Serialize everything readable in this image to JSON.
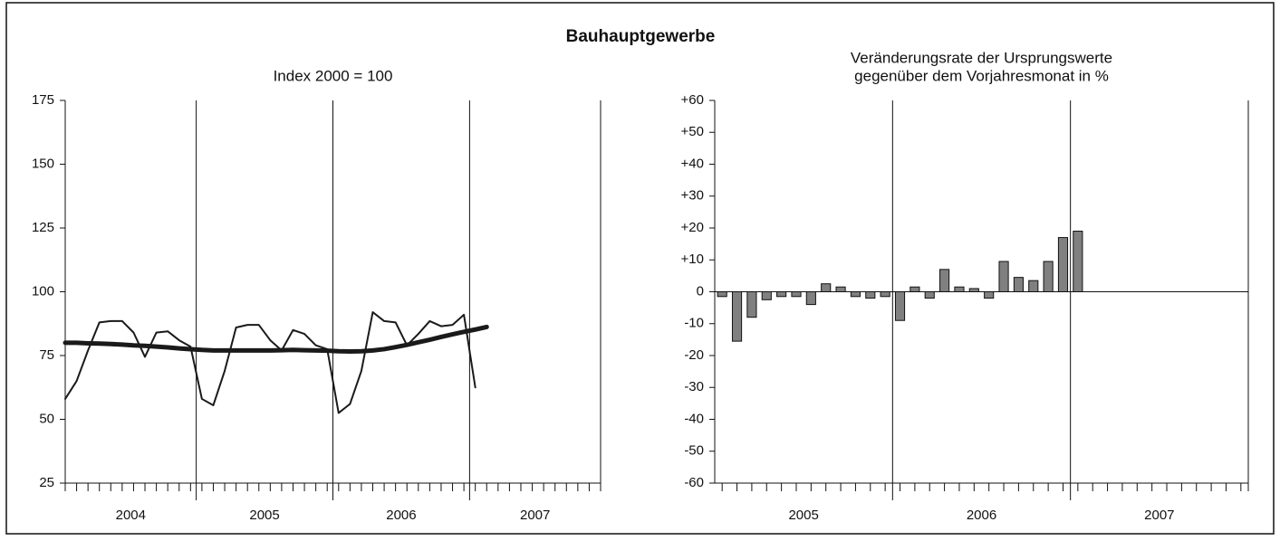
{
  "title": "Bauhauptgewerbe",
  "chart_data": [
    {
      "type": "line",
      "subtitle": [
        "Index 2000 = 100"
      ],
      "categories": [
        null,
        null,
        null,
        null,
        null,
        null,
        null,
        null,
        null,
        null,
        null,
        null,
        null,
        null,
        null,
        null,
        null,
        null,
        null,
        null,
        null,
        null,
        null,
        null,
        null,
        null,
        null,
        null,
        null,
        null,
        null,
        null,
        null,
        null,
        null,
        null,
        null,
        null,
        null,
        null,
        null,
        null,
        null,
        null,
        null,
        null,
        null,
        null
      ],
      "x_groups": [
        "2004",
        "2005",
        "2006",
        "2007"
      ],
      "series": [
        {
          "color": "#1a1a1a",
          "width": 2,
          "values": [
            58,
            65,
            77,
            88,
            88.5,
            88.5,
            84,
            74.5,
            84,
            84.5,
            81,
            78.5,
            58,
            55.5,
            69,
            86,
            87,
            87,
            81,
            77,
            85,
            83.5,
            79,
            77.5,
            52.5,
            56,
            69,
            92,
            88.5,
            88,
            79,
            83.5,
            88.5,
            86.5,
            87,
            91,
            62.5,
            null,
            null,
            null,
            null,
            null,
            null,
            null,
            null,
            null,
            null,
            null
          ]
        },
        {
          "color": "#1a1a1a",
          "width": 5,
          "values": [
            80,
            80,
            79.8,
            79.7,
            79.5,
            79.3,
            79,
            78.8,
            78.5,
            78.2,
            77.8,
            77.5,
            77.2,
            77,
            77,
            77,
            77,
            77,
            77,
            77.1,
            77.2,
            77.1,
            77,
            76.9,
            76.7,
            76.6,
            76.7,
            77,
            77.5,
            78.3,
            79.2,
            80.2,
            81.2,
            82.3,
            83.3,
            84.3,
            85.2,
            86.2,
            null,
            null,
            null,
            null,
            null,
            null,
            null,
            null,
            null,
            null
          ]
        }
      ],
      "ylim": [
        25,
        175
      ],
      "yticks": [
        25,
        50,
        75,
        100,
        125,
        150,
        175
      ]
    },
    {
      "type": "bar",
      "subtitle": [
        "Veränderungsrate der Ursprungswerte",
        "gegenüber dem Vorjahresmonat in %"
      ],
      "categories": [
        null,
        null,
        null,
        null,
        null,
        null,
        null,
        null,
        null,
        null,
        null,
        null,
        null,
        null,
        null,
        null,
        null,
        null,
        null,
        null,
        null,
        null,
        null,
        null,
        null,
        null,
        null,
        null,
        null,
        null,
        null,
        null,
        null,
        null,
        null,
        null
      ],
      "x_groups": [
        "2005",
        "2006",
        "2007"
      ],
      "values": [
        -1.5,
        -15.5,
        -8,
        -2.5,
        -1.5,
        -1.5,
        -4,
        2.5,
        1.5,
        -1.5,
        -2,
        -1.5,
        -9,
        1.5,
        -2,
        7,
        1.5,
        1,
        -2,
        9.5,
        4.5,
        3.5,
        9.5,
        17,
        19,
        null,
        null,
        null,
        null,
        null,
        null,
        null,
        null,
        null,
        null,
        null
      ],
      "color": "#808080",
      "ylim": [
        -60,
        60
      ],
      "yticks": [
        -60,
        -50,
        -40,
        -30,
        -20,
        -10,
        0,
        {
          "value": 10,
          "label": "+10"
        },
        {
          "value": 20,
          "label": "+20"
        },
        {
          "value": 30,
          "label": "+30"
        },
        {
          "value": 40,
          "label": "+40"
        },
        {
          "value": 50,
          "label": "+50"
        },
        {
          "value": 60,
          "label": "+60"
        }
      ]
    }
  ]
}
